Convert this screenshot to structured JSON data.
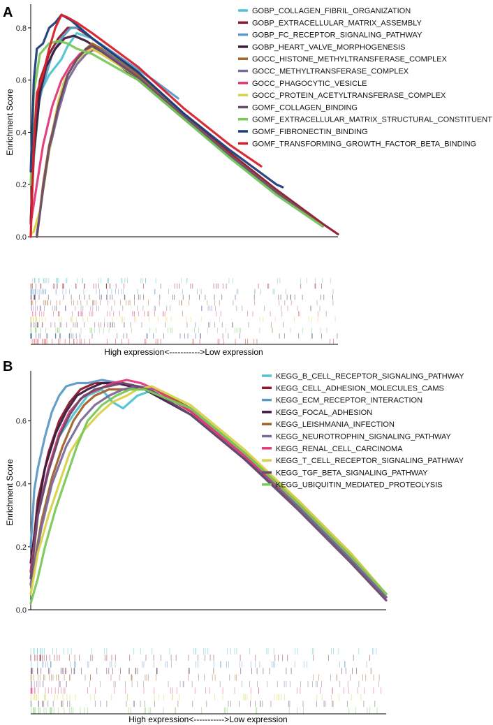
{
  "chart_data": [
    {
      "panel_label": "A",
      "type": "line",
      "ylabel": "Enrichment Score",
      "ylim": [
        0,
        0.88
      ],
      "y_ticks": [
        "0.0",
        "0.2",
        "0.4",
        "0.6",
        "0.8"
      ],
      "x_caption": "High expression<----------->Low expression",
      "legend_position": "top-right",
      "grid": false,
      "series": [
        {
          "name": "GOBP_COLLAGEN_FIBRIL_ORGANIZATION",
          "color": "#4fc3d3",
          "x": [
            0,
            0.01,
            0.03,
            0.06,
            0.1,
            0.12,
            0.15,
            0.2,
            0.35,
            0.5,
            0.65,
            0.8,
            0.95
          ],
          "y": [
            0.06,
            0.3,
            0.55,
            0.62,
            0.68,
            0.73,
            0.78,
            0.76,
            0.62,
            0.45,
            0.3,
            0.16,
            0.04
          ]
        },
        {
          "name": "GOBP_EXTRACELLULAR_MATRIX_ASSEMBLY",
          "color": "#8b1a2b",
          "x": [
            0,
            0.01,
            0.03,
            0.06,
            0.09,
            0.12,
            0.15,
            0.2,
            0.35,
            0.5,
            0.65,
            0.8,
            0.95,
            1.0
          ],
          "y": [
            0.05,
            0.38,
            0.6,
            0.7,
            0.76,
            0.8,
            0.8,
            0.76,
            0.63,
            0.47,
            0.32,
            0.18,
            0.05,
            0.01
          ]
        },
        {
          "name": "GOBP_FC_RECEPTOR_SIGNALING_PATHWAY",
          "color": "#5b9ac6",
          "x": [
            0,
            0.01,
            0.02,
            0.04,
            0.07,
            0.1,
            0.13,
            0.16,
            0.2,
            0.3,
            0.4,
            0.48
          ],
          "y": [
            0.2,
            0.4,
            0.48,
            0.58,
            0.7,
            0.76,
            0.8,
            0.8,
            0.76,
            0.68,
            0.6,
            0.53
          ]
        },
        {
          "name": "GOBP_HEART_VALVE_MORPHOGENESIS",
          "color": "#3d1a3f",
          "x": [
            0,
            0.01,
            0.03,
            0.05,
            0.08,
            0.11,
            0.14,
            0.18,
            0.22,
            0.35,
            0.5,
            0.65,
            0.8,
            0.95
          ],
          "y": [
            0.05,
            0.32,
            0.55,
            0.65,
            0.72,
            0.76,
            0.77,
            0.75,
            0.72,
            0.6,
            0.45,
            0.31,
            0.17,
            0.04
          ]
        },
        {
          "name": "GOCC_HISTONE_METHYLTRANSFERASE_COMPLEX",
          "color": "#a0632a",
          "x": [
            0.02,
            0.04,
            0.06,
            0.09,
            0.12,
            0.15,
            0.18,
            0.2,
            0.23,
            0.35,
            0.5,
            0.65,
            0.8,
            0.95
          ],
          "y": [
            0.0,
            0.2,
            0.35,
            0.5,
            0.62,
            0.68,
            0.72,
            0.74,
            0.72,
            0.62,
            0.46,
            0.31,
            0.17,
            0.04
          ]
        },
        {
          "name": "GOCC_METHYLTRANSFERASE_COMPLEX",
          "color": "#7b6a9a",
          "x": [
            0.02,
            0.04,
            0.06,
            0.09,
            0.12,
            0.15,
            0.18,
            0.21,
            0.24,
            0.35,
            0.5,
            0.65,
            0.8,
            0.95
          ],
          "y": [
            0.01,
            0.18,
            0.33,
            0.48,
            0.6,
            0.66,
            0.7,
            0.72,
            0.71,
            0.61,
            0.46,
            0.31,
            0.17,
            0.04
          ]
        },
        {
          "name": "GOCC_PHAGOCYTIC_VESICLE",
          "color": "#e03a78",
          "x": [
            0,
            0.02,
            0.04,
            0.07,
            0.1,
            0.13,
            0.16,
            0.19,
            0.22,
            0.35,
            0.5,
            0.65,
            0.8,
            0.95
          ],
          "y": [
            0.05,
            0.2,
            0.35,
            0.5,
            0.6,
            0.66,
            0.7,
            0.72,
            0.71,
            0.61,
            0.46,
            0.31,
            0.17,
            0.04
          ]
        },
        {
          "name": "GOCC_PROTEIN_ACETYLTRANSFERASE_COMPLEX",
          "color": "#d8d24a",
          "x": [
            0,
            0.01,
            0.03,
            0.05,
            0.07,
            0.09,
            0.11,
            0.14,
            0.17,
            0.2,
            0.23,
            0.35,
            0.5,
            0.65,
            0.8,
            0.95
          ],
          "y": [
            0.01,
            0.02,
            0.1,
            0.25,
            0.4,
            0.52,
            0.6,
            0.66,
            0.7,
            0.72,
            0.7,
            0.61,
            0.46,
            0.31,
            0.17,
            0.04
          ]
        },
        {
          "name": "GOMF_COLLAGEN_BINDING",
          "color": "#6a4a6a",
          "x": [
            0.02,
            0.04,
            0.06,
            0.09,
            0.12,
            0.15,
            0.18,
            0.2,
            0.23,
            0.35,
            0.5,
            0.65,
            0.8,
            0.95
          ],
          "y": [
            0.0,
            0.18,
            0.34,
            0.5,
            0.62,
            0.68,
            0.72,
            0.73,
            0.71,
            0.61,
            0.46,
            0.31,
            0.17,
            0.04
          ]
        },
        {
          "name": "GOMF_EXTRACELLULAR_MATRIX_STRUCTURAL_CONSTITUENT",
          "color": "#79c85a",
          "x": [
            0,
            0.01,
            0.03,
            0.06,
            0.09,
            0.12,
            0.15,
            0.2,
            0.35,
            0.5,
            0.65,
            0.8,
            0.95
          ],
          "y": [
            0.2,
            0.55,
            0.7,
            0.74,
            0.75,
            0.74,
            0.72,
            0.7,
            0.6,
            0.45,
            0.3,
            0.16,
            0.04
          ]
        },
        {
          "name": "GOMF_FIBRONECTIN_BINDING",
          "color": "#1f3d7a",
          "x": [
            0,
            0.01,
            0.02,
            0.04,
            0.06,
            0.08,
            0.1,
            0.13,
            0.16,
            0.2,
            0.35,
            0.5,
            0.65,
            0.8,
            0.82
          ],
          "y": [
            0.25,
            0.6,
            0.72,
            0.74,
            0.8,
            0.82,
            0.85,
            0.83,
            0.8,
            0.76,
            0.63,
            0.47,
            0.33,
            0.2,
            0.19
          ]
        },
        {
          "name": "GOMF_TRANSFORMING_GROWTH_FACTOR_BETA_BINDING",
          "color": "#d8202a",
          "x": [
            0,
            0.01,
            0.02,
            0.04,
            0.06,
            0.08,
            0.1,
            0.12,
            0.15,
            0.2,
            0.35,
            0.5,
            0.65,
            0.75
          ],
          "y": [
            0.0,
            0.35,
            0.55,
            0.62,
            0.72,
            0.8,
            0.85,
            0.84,
            0.82,
            0.78,
            0.65,
            0.49,
            0.35,
            0.27
          ]
        }
      ]
    },
    {
      "panel_label": "B",
      "type": "line",
      "ylabel": "Enrichment Score",
      "ylim": [
        0,
        0.75
      ],
      "y_ticks": [
        "0.0",
        "0.2",
        "0.4",
        "0.6"
      ],
      "x_caption": "High expression<----------->Low expression",
      "legend_position": "top-right",
      "grid": false,
      "series": [
        {
          "name": "KEGG_B_CELL_RECEPTOR_SIGNALING_PATHWAY",
          "color": "#4fc3d3",
          "x": [
            0,
            0.02,
            0.05,
            0.08,
            0.12,
            0.16,
            0.2,
            0.23,
            0.26,
            0.3,
            0.35,
            0.45,
            0.6,
            0.75,
            0.9,
            1.0
          ],
          "y": [
            0.1,
            0.3,
            0.45,
            0.55,
            0.62,
            0.68,
            0.7,
            0.66,
            0.64,
            0.68,
            0.7,
            0.64,
            0.5,
            0.34,
            0.17,
            0.05
          ]
        },
        {
          "name": "KEGG_CELL_ADHESION_MOLECULES_CAMS",
          "color": "#8b1a2b",
          "x": [
            0,
            0.02,
            0.05,
            0.08,
            0.11,
            0.14,
            0.18,
            0.22,
            0.26,
            0.3,
            0.35,
            0.45,
            0.6,
            0.75,
            0.9,
            1.0
          ],
          "y": [
            0.12,
            0.35,
            0.5,
            0.6,
            0.66,
            0.7,
            0.72,
            0.72,
            0.72,
            0.71,
            0.7,
            0.63,
            0.49,
            0.33,
            0.16,
            0.04
          ]
        },
        {
          "name": "KEGG_ECM_RECEPTOR_INTERACTION",
          "color": "#5b9ac6",
          "x": [
            0,
            0.01,
            0.02,
            0.04,
            0.06,
            0.08,
            0.1,
            0.13,
            0.16,
            0.2,
            0.25,
            0.3,
            0.35,
            0.45,
            0.6,
            0.75,
            0.9,
            1.0
          ],
          "y": [
            0.2,
            0.38,
            0.45,
            0.55,
            0.63,
            0.68,
            0.71,
            0.72,
            0.72,
            0.73,
            0.72,
            0.71,
            0.69,
            0.62,
            0.48,
            0.33,
            0.16,
            0.04
          ]
        },
        {
          "name": "KEGG_FOCAL_ADHESION",
          "color": "#3d1a3f",
          "x": [
            0,
            0.02,
            0.04,
            0.07,
            0.1,
            0.13,
            0.16,
            0.2,
            0.24,
            0.28,
            0.32,
            0.45,
            0.6,
            0.75,
            0.9,
            1.0
          ],
          "y": [
            0.15,
            0.32,
            0.45,
            0.56,
            0.63,
            0.68,
            0.7,
            0.72,
            0.72,
            0.71,
            0.7,
            0.62,
            0.48,
            0.33,
            0.16,
            0.04
          ]
        },
        {
          "name": "KEGG_LEISHMANIA_INFECTION",
          "color": "#a0632a",
          "x": [
            0,
            0.03,
            0.06,
            0.09,
            0.12,
            0.15,
            0.18,
            0.22,
            0.26,
            0.3,
            0.35,
            0.45,
            0.6,
            0.75,
            0.9,
            1.0
          ],
          "y": [
            0.08,
            0.28,
            0.42,
            0.52,
            0.6,
            0.65,
            0.68,
            0.7,
            0.7,
            0.7,
            0.7,
            0.64,
            0.5,
            0.35,
            0.18,
            0.05
          ]
        },
        {
          "name": "KEGG_NEUROTROPHIN_SIGNALING_PATHWAY",
          "color": "#7b6a9a",
          "x": [
            0,
            0.03,
            0.06,
            0.1,
            0.14,
            0.18,
            0.22,
            0.26,
            0.3,
            0.35,
            0.45,
            0.6,
            0.75,
            0.9,
            1.0
          ],
          "y": [
            0.08,
            0.26,
            0.4,
            0.52,
            0.6,
            0.65,
            0.68,
            0.7,
            0.71,
            0.7,
            0.63,
            0.49,
            0.33,
            0.16,
            0.04
          ]
        },
        {
          "name": "KEGG_RENAL_CELL_CARCINOMA",
          "color": "#e03a78",
          "x": [
            0,
            0.02,
            0.05,
            0.08,
            0.11,
            0.15,
            0.19,
            0.23,
            0.27,
            0.31,
            0.35,
            0.45,
            0.6,
            0.75,
            0.9,
            1.0
          ],
          "y": [
            0.12,
            0.3,
            0.45,
            0.56,
            0.63,
            0.68,
            0.7,
            0.72,
            0.73,
            0.72,
            0.7,
            0.63,
            0.49,
            0.34,
            0.17,
            0.05
          ]
        },
        {
          "name": "KEGG_T_CELL_RECEPTOR_SIGNALING_PATHWAY",
          "color": "#d8d24a",
          "x": [
            0,
            0.02,
            0.05,
            0.08,
            0.11,
            0.15,
            0.19,
            0.23,
            0.27,
            0.3,
            0.34,
            0.45,
            0.6,
            0.75,
            0.9,
            1.0
          ],
          "y": [
            0.05,
            0.18,
            0.3,
            0.4,
            0.5,
            0.57,
            0.62,
            0.66,
            0.68,
            0.7,
            0.71,
            0.65,
            0.51,
            0.35,
            0.18,
            0.05
          ]
        },
        {
          "name": "KEGG_TGF_BETA_SIGNALING_PATHWAY",
          "color": "#6a4a6a",
          "x": [
            0,
            0.02,
            0.05,
            0.08,
            0.11,
            0.14,
            0.18,
            0.22,
            0.26,
            0.3,
            0.35,
            0.45,
            0.6,
            0.75,
            0.9,
            1.0
          ],
          "y": [
            0.1,
            0.3,
            0.44,
            0.55,
            0.62,
            0.67,
            0.7,
            0.71,
            0.72,
            0.71,
            0.69,
            0.62,
            0.48,
            0.32,
            0.15,
            0.03
          ]
        },
        {
          "name": "KEGG_UBIQUITIN_MEDIATED_PROTEOLYSIS",
          "color": "#79c85a",
          "x": [
            0,
            0.02,
            0.04,
            0.07,
            0.1,
            0.13,
            0.16,
            0.2,
            0.24,
            0.28,
            0.32,
            0.45,
            0.6,
            0.75,
            0.9,
            1.0
          ],
          "y": [
            0.02,
            0.1,
            0.2,
            0.32,
            0.42,
            0.52,
            0.6,
            0.65,
            0.68,
            0.7,
            0.7,
            0.64,
            0.5,
            0.34,
            0.17,
            0.05
          ]
        }
      ]
    }
  ]
}
